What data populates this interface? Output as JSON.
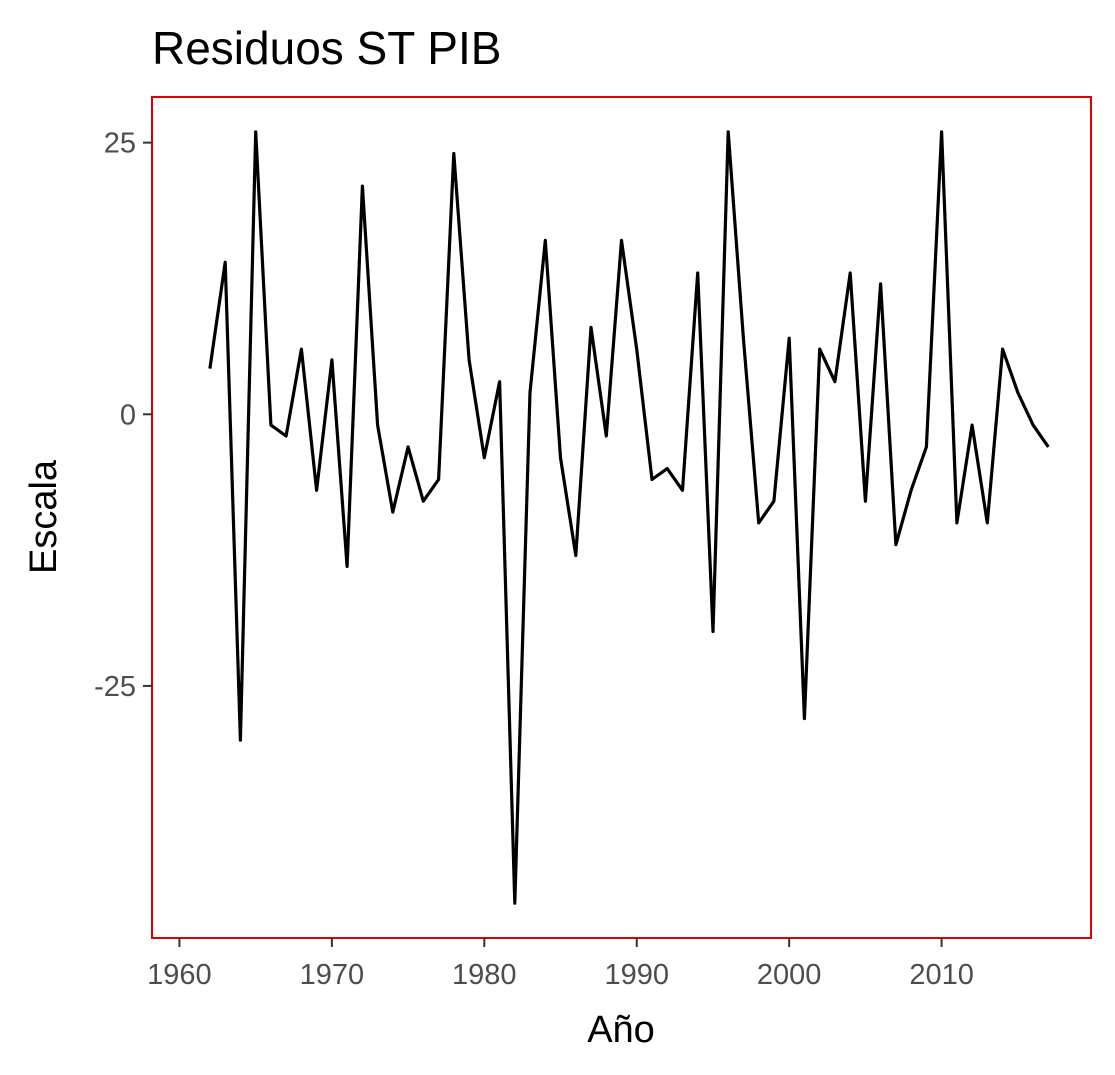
{
  "chart_data": {
    "type": "line",
    "title": "Residuos ST PIB",
    "xlabel": "Año",
    "ylabel": "Escala",
    "xlim": [
      1958.2,
      2019.8
    ],
    "ylim": [
      -48.2,
      29.2
    ],
    "x_ticks": [
      1960,
      1970,
      1980,
      1990,
      2000,
      2010
    ],
    "y_ticks": [
      -25,
      0,
      25
    ],
    "grid": false,
    "legend": "none",
    "panel_border_color": "#dd0000",
    "line_color": "#000000",
    "series": [
      {
        "x": [
          1962,
          1963,
          1964,
          1965,
          1966,
          1967,
          1968,
          1969,
          1970,
          1971,
          1972,
          1973,
          1974,
          1975,
          1976,
          1977,
          1978,
          1979,
          1980,
          1981,
          1982,
          1983,
          1984,
          1985,
          1986,
          1987,
          1988,
          1989,
          1990,
          1991,
          1992,
          1993,
          1994,
          1995,
          1996,
          1997,
          1998,
          1999,
          2000,
          2001,
          2002,
          2003,
          2004,
          2005,
          2006,
          2007,
          2008,
          2009,
          2010,
          2011,
          2012,
          2013,
          2014,
          2015,
          2016,
          2017
        ],
        "values": [
          4.2,
          14,
          -30,
          26,
          -1,
          -2,
          6,
          -7,
          5,
          -14,
          21,
          -1,
          -9,
          -3,
          -8,
          -6,
          24,
          5,
          -4,
          3,
          -45,
          2,
          16,
          -4,
          -13,
          8,
          -2,
          16,
          6,
          -6,
          -5,
          -7,
          13,
          -20,
          26,
          7,
          -10,
          -8,
          7,
          -28,
          6,
          3,
          13,
          -8,
          12,
          -12,
          -7,
          -3,
          26,
          -10,
          -1,
          -10,
          6,
          2,
          -1,
          -3
        ]
      }
    ]
  }
}
